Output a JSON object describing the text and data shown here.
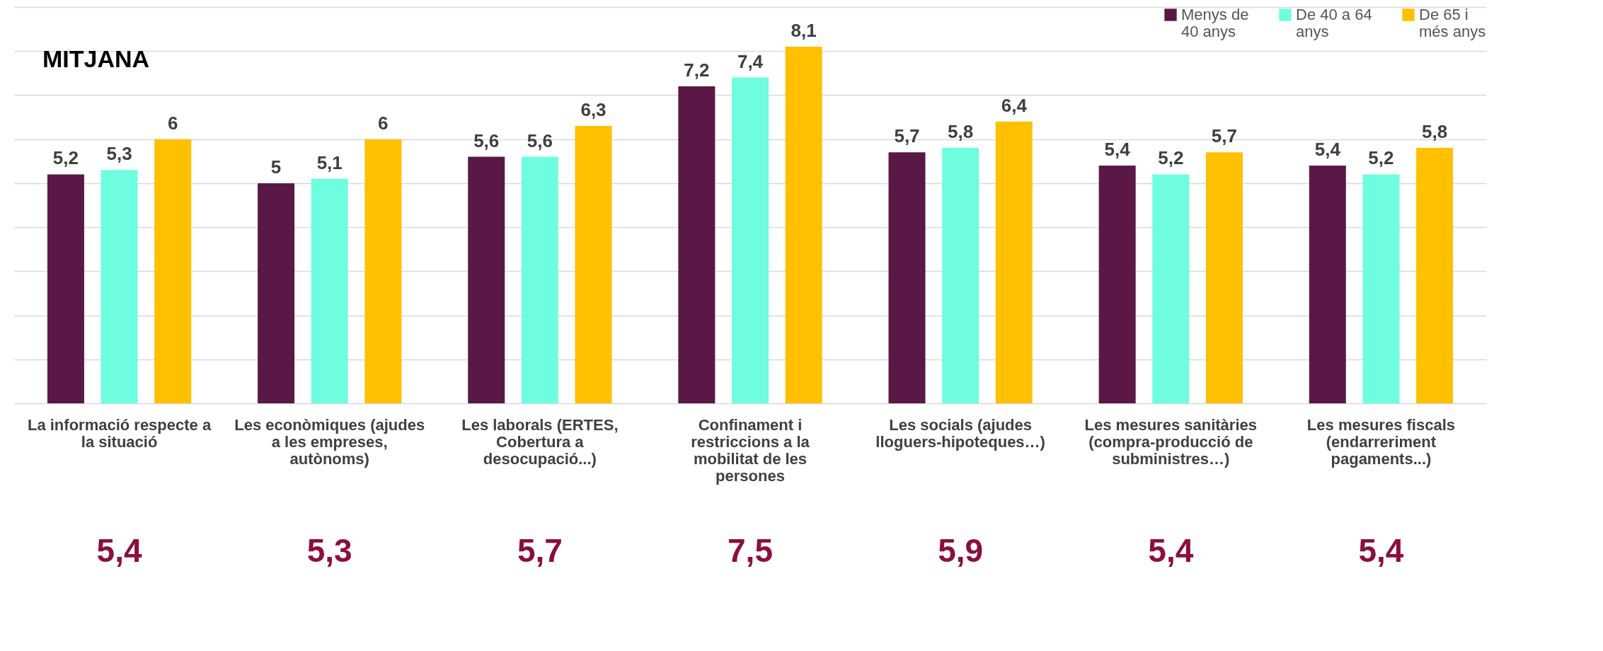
{
  "chart_data": {
    "type": "bar",
    "title": "MITJANA",
    "categories": [
      "La informació respecte a la situació",
      "Les econòmiques (ajudes a les empreses, autònoms)",
      "Les laborals (ERTES, Cobertura a desocupació...)",
      "Confinament i restriccions a la mobilitat  de les persones",
      "Les socials (ajudes lloguers-hipoteques…)",
      "Les mesures sanitàries (compra-producció de subministres…)",
      "Les mesures fiscals (endarreriment pagaments...)"
    ],
    "series": [
      {
        "name": "Menys de 40 anys",
        "color": "#5a1846",
        "values": [
          5.2,
          5,
          5.6,
          7.2,
          5.7,
          5.4,
          5.4
        ],
        "value_labels": [
          "5,2",
          "5",
          "5,6",
          "7,2",
          "5,7",
          "5,4",
          "5,4"
        ]
      },
      {
        "name": "De 40 a 64 anys",
        "color": "#6ffde0",
        "values": [
          5.3,
          5.1,
          5.6,
          7.4,
          5.8,
          5.2,
          5.2
        ],
        "value_labels": [
          "5,3",
          "5,1",
          "5,6",
          "7,4",
          "5,8",
          "5,2",
          "5,2"
        ]
      },
      {
        "name": "De 65 i més anys",
        "color": "#ffc000",
        "values": [
          6,
          6,
          6.3,
          8.1,
          6.4,
          5.7,
          5.8
        ],
        "value_labels": [
          "6",
          "6",
          "6,3",
          "8,1",
          "6,4",
          "5,7",
          "5,8"
        ]
      }
    ],
    "annotations": [
      "5,4",
      "5,3",
      "5,7",
      "7,5",
      "5,9",
      "5,4",
      "5,4"
    ],
    "ylim": [
      0,
      9
    ],
    "yticks": [
      {
        "value": 0,
        "label": null
      },
      {
        "value": 1,
        "label": null
      },
      {
        "value": 2,
        "label": null
      },
      {
        "value": 3,
        "label": null
      },
      {
        "value": 4,
        "label": null
      },
      {
        "value": 5,
        "label": null
      },
      {
        "value": 6,
        "label": null
      },
      {
        "value": 7,
        "label": null
      },
      {
        "value": 8,
        "label": null
      },
      {
        "value": 9,
        "label": null
      }
    ],
    "tick_labels": "x",
    "grid": "y",
    "legend": "top right"
  }
}
